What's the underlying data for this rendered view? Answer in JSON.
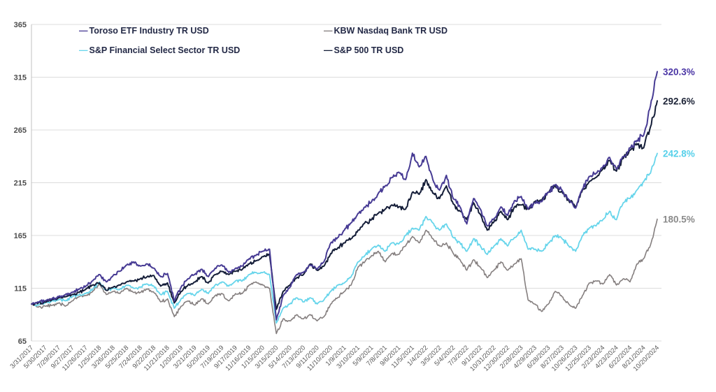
{
  "chart": {
    "legend_marker": "—"
  },
  "chart_data": {
    "type": "line",
    "ylim": [
      65,
      365
    ],
    "grid": true,
    "legend_position": "top",
    "y_ticks": [
      365,
      315,
      265,
      215,
      165,
      115,
      65
    ],
    "x_labels": [
      "3/31/2017",
      "5/30/2017",
      "7/29/2017",
      "9/27/2017",
      "11/26/2017",
      "1/25/2018",
      "3/26/2018",
      "5/25/2018",
      "7/24/2018",
      "9/22/2018",
      "11/21/2018",
      "1/20/2019",
      "3/21/2019",
      "5/20/2019",
      "7/19/2019",
      "9/17/2019",
      "11/16/2019",
      "1/15/2020",
      "3/15/2020",
      "5/14/2020",
      "7/13/2020",
      "9/11/2020",
      "11/10/2020",
      "1/9/2021",
      "3/10/2021",
      "5/9/2021",
      "7/8/2021",
      "9/6/2021",
      "11/5/2021",
      "1/4/2022",
      "3/5/2022",
      "5/4/2022",
      "7/3/2022",
      "9/1/2022",
      "10/31/2022",
      "12/30/2022",
      "2/28/2023",
      "4/29/2023",
      "6/28/2023",
      "8/27/2023",
      "10/26/2023",
      "12/25/2023",
      "2/23/2024",
      "4/23/2024",
      "6/22/2024",
      "8/21/2024",
      "10/20/2024"
    ],
    "points_per_label": 2,
    "style": {
      "grid_color": "#dcdcdc",
      "axis_color": "#c2c2c2",
      "y_tick_color": "#4d4d4d",
      "x_tick_color": "#5a5a5a",
      "legend_text_color": "#232946",
      "background": "#ffffff"
    },
    "series": [
      {
        "name": "Toroso ETF Industry TR USD",
        "slug": "toroso-etf-industry",
        "color": "#473b94",
        "end_label": "320.3%",
        "end_label_color": "#4a35a5",
        "z": 4,
        "stroke_width": 2,
        "values": [
          100,
          102,
          103,
          105,
          107,
          109,
          111,
          114,
          117,
          122,
          128,
          121,
          127,
          131,
          137,
          140,
          136,
          138,
          134,
          126,
          129,
          103,
          116,
          124,
          128,
          133,
          126,
          134,
          137,
          130,
          134,
          136,
          143,
          146,
          150,
          152,
          85,
          108,
          116,
          128,
          130,
          137,
          133,
          140,
          158,
          163,
          170,
          177,
          186,
          192,
          197,
          205,
          212,
          220,
          225,
          218,
          243,
          230,
          240,
          218,
          208,
          222,
          200,
          192,
          176,
          200,
          190,
          174,
          181,
          192,
          184,
          198,
          202,
          190,
          196,
          197,
          206,
          213,
          208,
          199,
          191,
          209,
          221,
          224,
          230,
          239,
          228,
          240,
          248,
          255,
          260,
          288,
          320.3
        ]
      },
      {
        "name": "KBW Nasdaq Bank TR USD",
        "slug": "kbw-nasdaq-bank",
        "color": "#857f7f",
        "end_label": "180.5%",
        "end_label_color": "#8a8a8a",
        "z": 1,
        "stroke_width": 1.6,
        "values": [
          100,
          97,
          98,
          99,
          101,
          98,
          103,
          107,
          108,
          112,
          119,
          109,
          112,
          110,
          115,
          111,
          111,
          114,
          111,
          102,
          105,
          88,
          98,
          103,
          99,
          105,
          100,
          108,
          110,
          103,
          110,
          110,
          118,
          121,
          118,
          115,
          72,
          86,
          84,
          90,
          86,
          90,
          84,
          88,
          100,
          106,
          112,
          118,
          135,
          140,
          146,
          150,
          140,
          148,
          147,
          155,
          164,
          158,
          170,
          162,
          155,
          158,
          148,
          142,
          132,
          142,
          135,
          125,
          132,
          140,
          132,
          138,
          143,
          104,
          100,
          93,
          100,
          112,
          107,
          100,
          96,
          108,
          120,
          122,
          119,
          128,
          118,
          124,
          121,
          138,
          143,
          156,
          180.5
        ]
      },
      {
        "name": "S&P Financial Select Sector TR USD",
        "slug": "sp-financial-select",
        "color": "#67d5eb",
        "end_label": "242.8%",
        "end_label_color": "#56d0ea",
        "z": 2,
        "stroke_width": 1.8,
        "values": [
          100,
          99,
          101,
          103,
          104,
          103,
          107,
          109,
          110,
          114,
          121,
          113,
          115,
          114,
          118,
          115,
          116,
          119,
          117,
          109,
          112,
          96,
          105,
          110,
          108,
          114,
          110,
          118,
          121,
          117,
          122,
          122,
          128,
          130,
          130,
          128,
          82,
          96,
          100,
          106,
          102,
          106,
          100,
          104,
          112,
          118,
          120,
          126,
          140,
          146,
          152,
          156,
          150,
          158,
          157,
          165,
          172,
          170,
          183,
          177,
          170,
          176,
          163,
          158,
          150,
          162,
          155,
          147,
          155,
          162,
          155,
          163,
          170,
          152,
          152,
          150,
          158,
          165,
          162,
          155,
          150,
          165,
          172,
          174,
          180,
          188,
          180,
          196,
          200,
          208,
          216,
          224,
          242.8
        ]
      },
      {
        "name": "S&P 500 TR USD",
        "slug": "sp500",
        "color": "#141d38",
        "end_label": "292.6%",
        "end_label_color": "#1c2336",
        "z": 3,
        "stroke_width": 2,
        "values": [
          100,
          101,
          102,
          104,
          106,
          107,
          109,
          111,
          114,
          118,
          120,
          113,
          116,
          118,
          121,
          122,
          124,
          126,
          127,
          117,
          120,
          101,
          112,
          118,
          121,
          126,
          120,
          128,
          131,
          128,
          131,
          133,
          138,
          141,
          145,
          147,
          95,
          112,
          118,
          125,
          128,
          138,
          132,
          136,
          148,
          153,
          158,
          162,
          170,
          177,
          180,
          186,
          190,
          194,
          192,
          190,
          206,
          204,
          218,
          205,
          200,
          212,
          195,
          188,
          180,
          196,
          185,
          170,
          178,
          188,
          180,
          192,
          194,
          190,
          197,
          198,
          206,
          212,
          206,
          198,
          192,
          208,
          216,
          220,
          228,
          236,
          226,
          238,
          246,
          252,
          248,
          268,
          292.6
        ]
      }
    ]
  }
}
